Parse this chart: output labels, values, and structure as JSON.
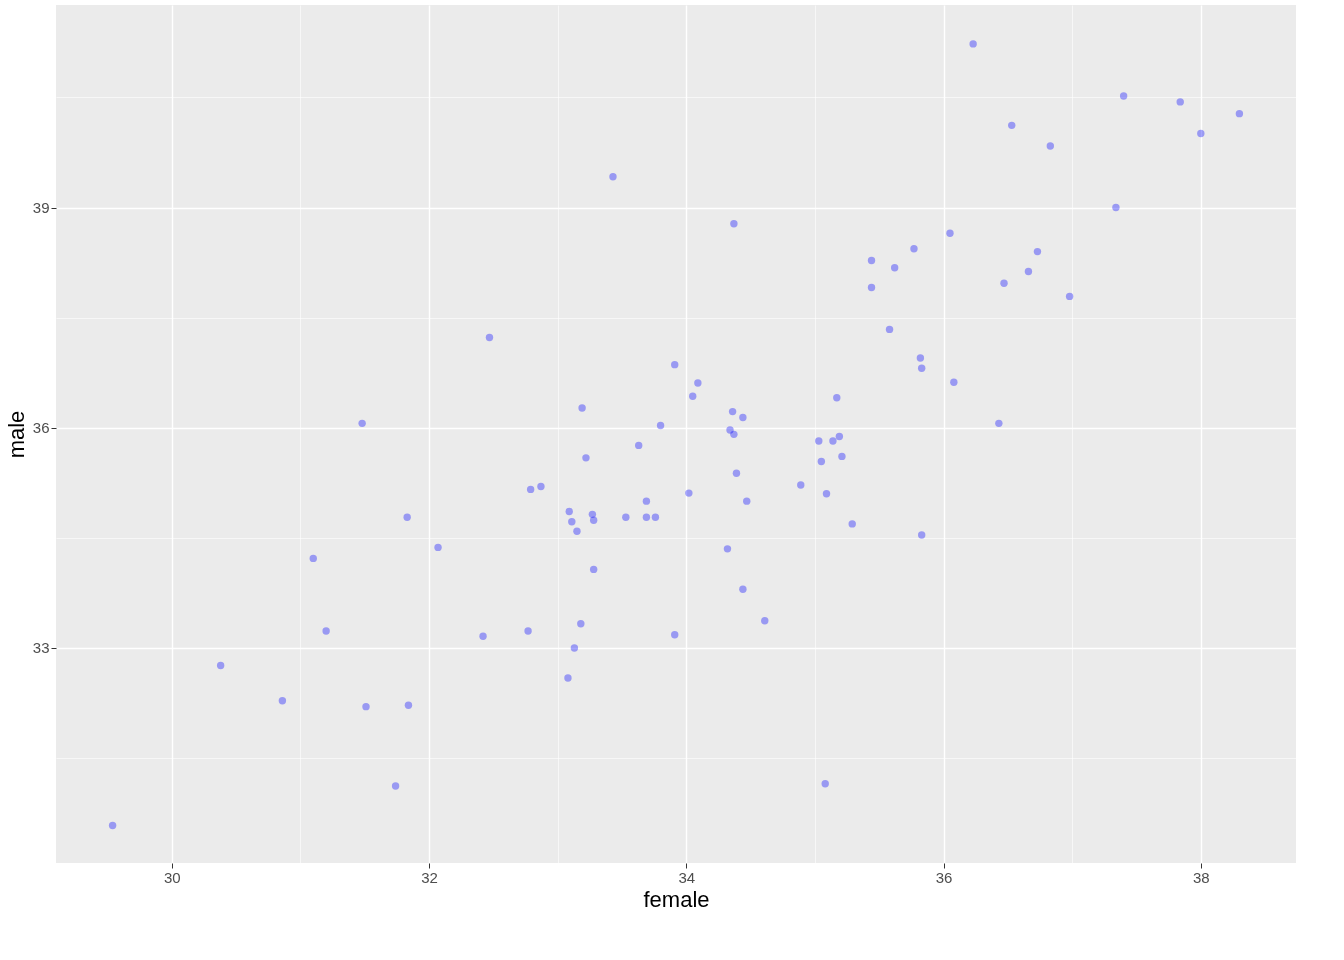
{
  "chart_data": {
    "type": "scatter",
    "xlabel": "female",
    "ylabel": "male",
    "color": "#0000ff",
    "marker": "circle",
    "grid": true,
    "xlim": [
      29.1,
      38.74
    ],
    "ylim": [
      30.07,
      41.76
    ],
    "xticks": [
      30,
      {
        "value": 31,
        "label": null
      },
      32,
      {
        "value": 33,
        "label": null
      },
      34,
      {
        "value": 35,
        "label": null
      },
      36,
      {
        "value": 37,
        "label": null
      },
      38
    ],
    "yticks": [
      {
        "value": 31.5,
        "label": null
      },
      33,
      {
        "value": 34.5,
        "label": null
      },
      36,
      {
        "value": 37.5,
        "label": null
      },
      39,
      {
        "value": 40.5,
        "label": null
      }
    ],
    "x": [
      36.23,
      37.4,
      37.84,
      38.3,
      36.53,
      36.83,
      38.0,
      33.43,
      37.34,
      34.37,
      36.05,
      35.44,
      35.77,
      35.62,
      36.73,
      36.66,
      36.47,
      35.44,
      36.98,
      35.58,
      32.47,
      33.91,
      35.82,
      35.83,
      34.09,
      36.08,
      34.05,
      35.17,
      33.19,
      34.36,
      34.44,
      31.48,
      33.8,
      36.43,
      34.34,
      34.37,
      35.19,
      35.03,
      35.14,
      33.63,
      35.21,
      33.22,
      35.05,
      34.39,
      32.87,
      32.79,
      34.89,
      34.02,
      35.09,
      33.69,
      34.47,
      33.09,
      31.83,
      33.27,
      33.53,
      33.69,
      33.76,
      33.11,
      33.28,
      33.15,
      35.29,
      35.83,
      32.07,
      34.32,
      31.1,
      33.28,
      34.44,
      34.61,
      31.2,
      32.77,
      33.18,
      32.42,
      33.91,
      33.13,
      30.38,
      30.86,
      31.51,
      31.84,
      33.08,
      31.74,
      35.08,
      29.54
    ],
    "values": [
      41.23,
      40.52,
      40.44,
      40.28,
      40.12,
      39.84,
      40.01,
      39.42,
      39.0,
      38.78,
      38.65,
      38.28,
      38.44,
      38.18,
      38.4,
      38.13,
      37.97,
      37.91,
      37.79,
      37.34,
      37.23,
      36.86,
      36.95,
      36.81,
      36.61,
      36.62,
      36.43,
      36.41,
      36.27,
      36.22,
      36.14,
      36.06,
      36.03,
      36.06,
      35.97,
      35.91,
      35.88,
      35.82,
      35.82,
      35.76,
      35.61,
      35.59,
      35.54,
      35.38,
      35.2,
      35.16,
      35.22,
      35.11,
      35.1,
      35.0,
      35.0,
      34.86,
      34.78,
      34.82,
      34.78,
      34.78,
      34.78,
      34.72,
      34.74,
      34.59,
      34.69,
      34.54,
      34.37,
      34.35,
      34.22,
      34.07,
      33.8,
      33.37,
      33.23,
      33.23,
      33.33,
      33.16,
      33.18,
      33.0,
      32.76,
      32.28,
      32.2,
      32.22,
      32.59,
      31.12,
      31.15,
      30.58
    ]
  }
}
